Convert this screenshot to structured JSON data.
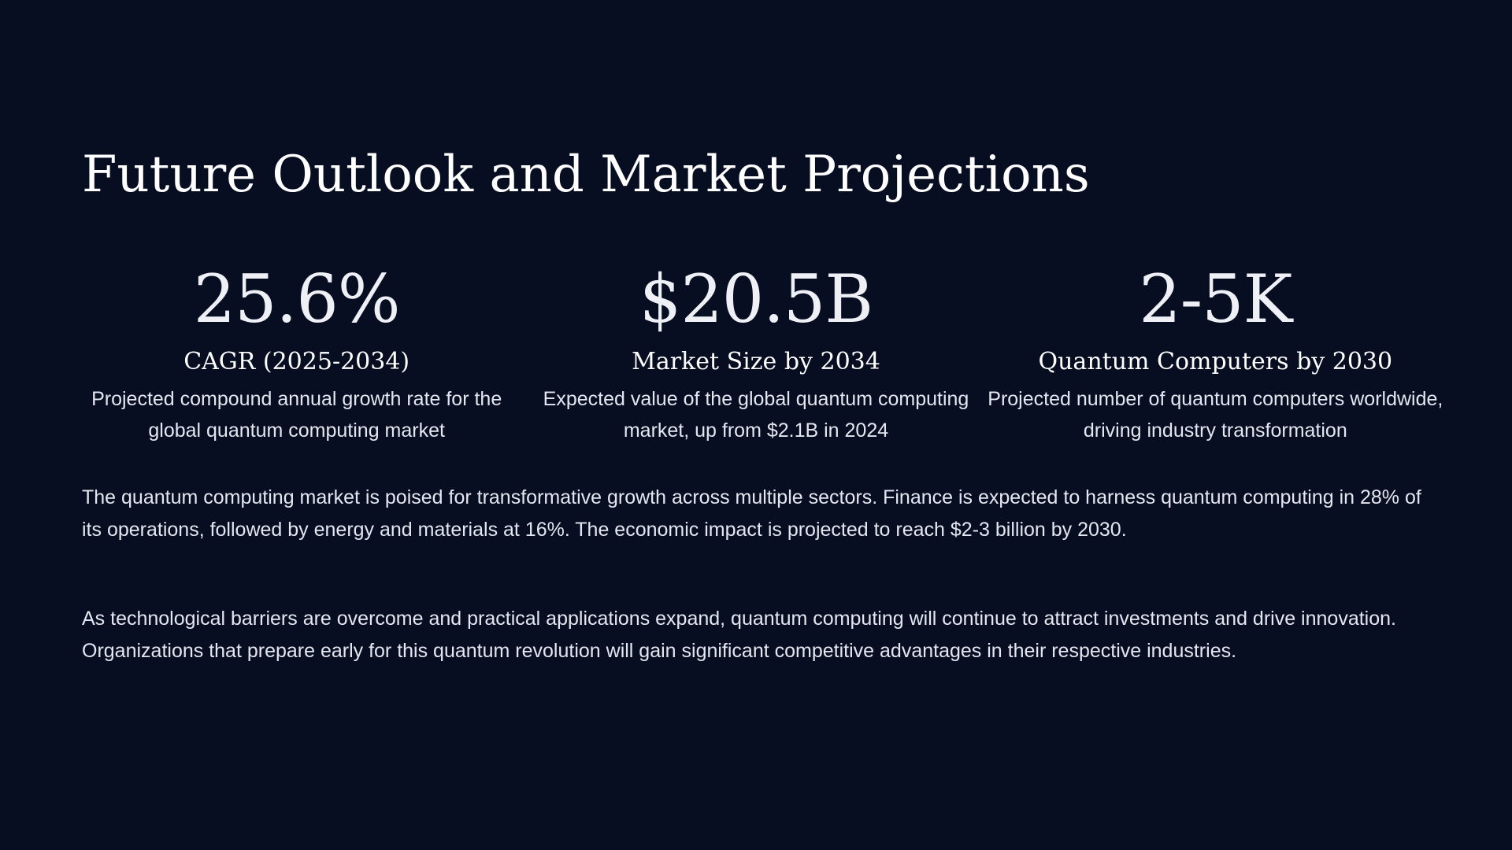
{
  "slide": {
    "title": "Future Outlook and Market Projections",
    "stats": [
      {
        "value": "25.6%",
        "label": "CAGR (2025-2034)",
        "description": "Projected compound annual growth rate for the global quantum computing market"
      },
      {
        "value": "$20.5B",
        "label": "Market Size by 2034",
        "description": "Expected value of the global quantum computing market, up from $2.1B in 2024"
      },
      {
        "value": "2-5K",
        "label": "Quantum Computers by 2030",
        "description": "Projected number of quantum computers worldwide, driving industry transformation"
      }
    ],
    "paragraphs": [
      "The quantum computing market is poised for transformative growth across multiple sectors. Finance is expected to harness quantum computing in 28% of its operations, followed by energy and materials at 16%. The economic impact is projected to reach $2-3 billion by 2030.",
      "As technological barriers are overcome and practical applications expand, quantum computing will continue to attract investments and drive innovation. Organizations that prepare early for this quantum revolution will gain significant competitive advantages in their respective industries."
    ]
  },
  "colors": {
    "background": "#070e22",
    "text": "#ffffff",
    "body_text": "#e4e7ef"
  }
}
